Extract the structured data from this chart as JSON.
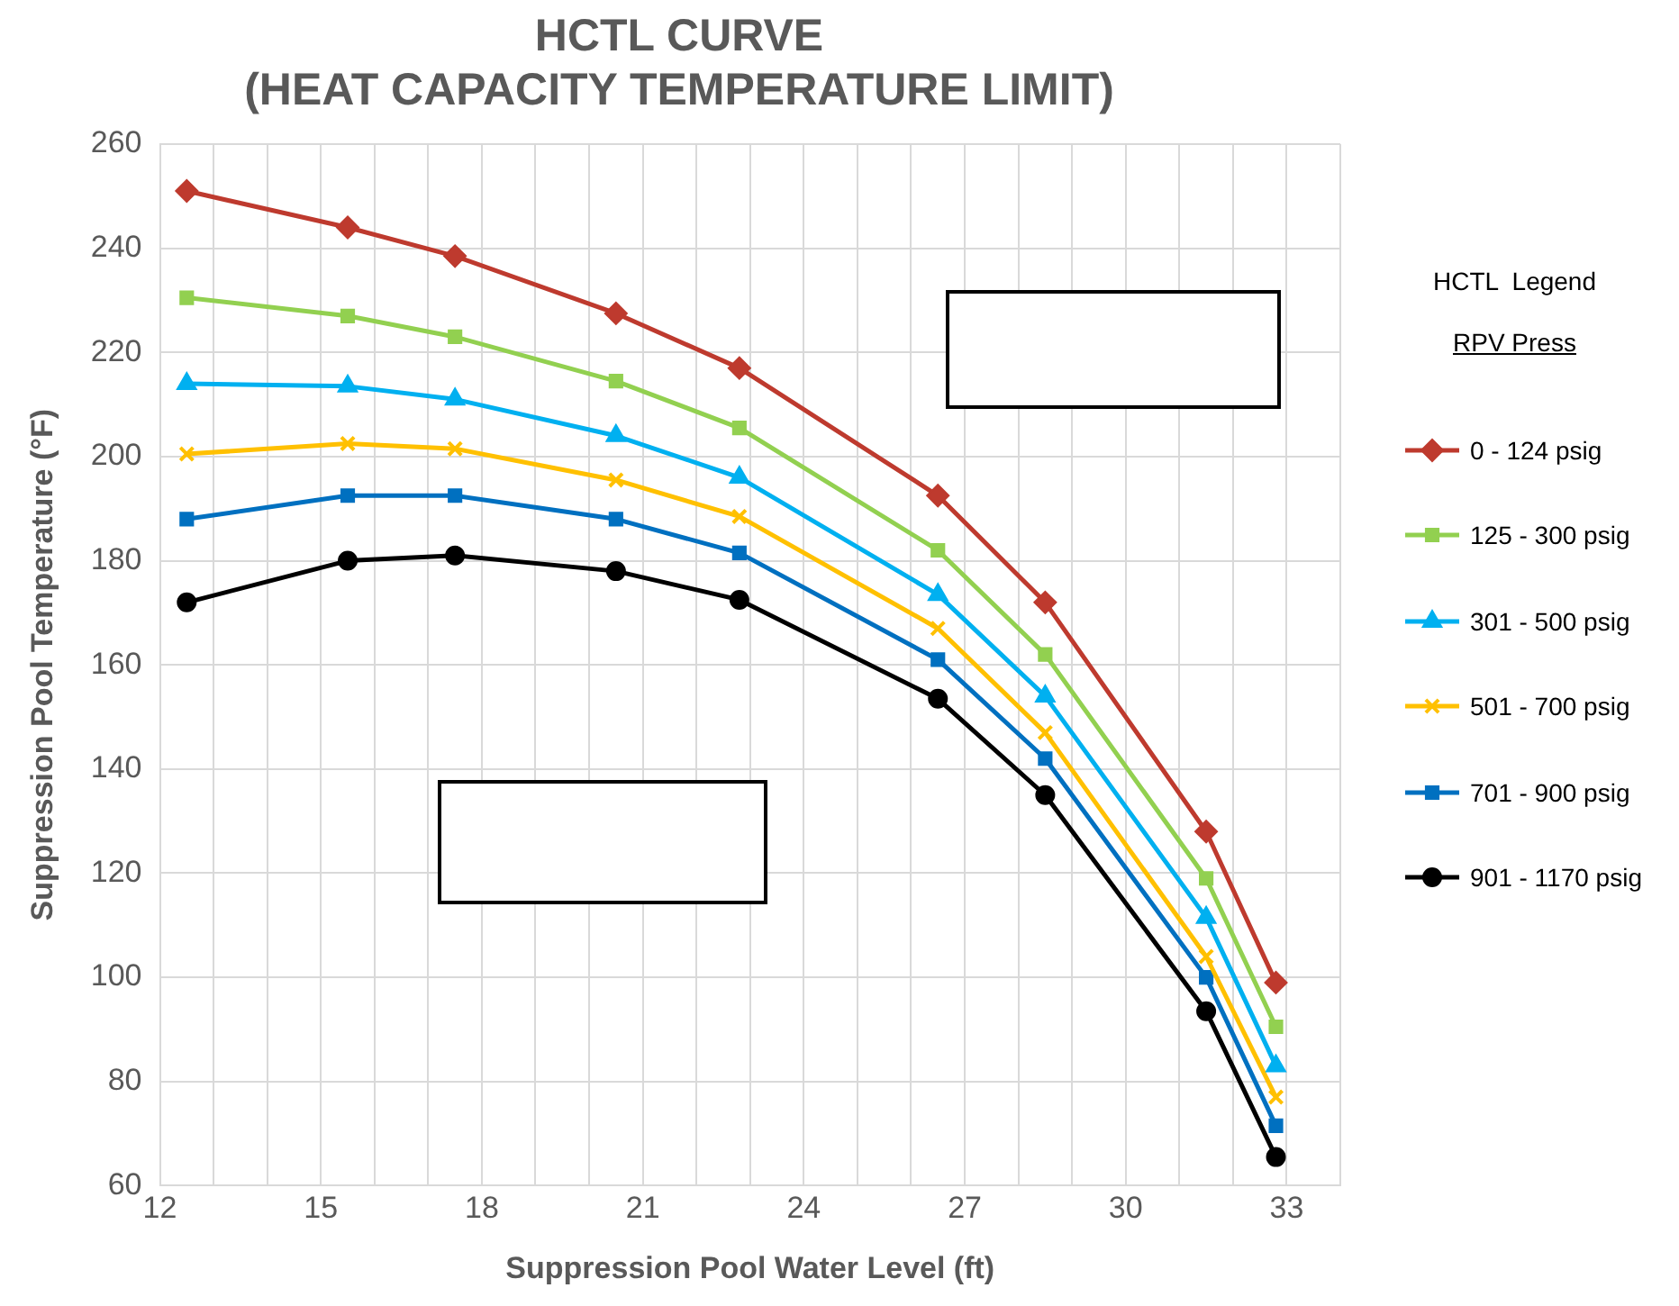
{
  "chart_data": {
    "type": "line",
    "title": "HCTL CURVE\n(HEAT CAPACITY TEMPERATURE LIMIT)",
    "xlabel": "Suppression Pool Water Level (ft)",
    "ylabel": "Suppression Pool Temperature (°F)",
    "legend_title": "HCTL  Legend\nRPV Press",
    "legend": "right",
    "grid": true,
    "line_style": "solid",
    "x": [
      12.5,
      15.5,
      17.5,
      20.5,
      22.8,
      26.5,
      28.5,
      31.5,
      32.8
    ],
    "xlim": [
      12,
      34
    ],
    "xticks": [
      12,
      {
        "value": 13,
        "label": null
      },
      {
        "value": 14,
        "label": null
      },
      15,
      {
        "value": 16,
        "label": null
      },
      {
        "value": 17,
        "label": null
      },
      18,
      {
        "value": 19,
        "label": null
      },
      {
        "value": 20,
        "label": null
      },
      21,
      {
        "value": 22,
        "label": null
      },
      {
        "value": 23,
        "label": null
      },
      24,
      {
        "value": 25,
        "label": null
      },
      {
        "value": 26,
        "label": null
      },
      27,
      {
        "value": 28,
        "label": null
      },
      {
        "value": 29,
        "label": null
      },
      30,
      {
        "value": 31,
        "label": null
      },
      {
        "value": 32,
        "label": null
      },
      33,
      {
        "value": 34,
        "label": null
      }
    ],
    "ylim": [
      60,
      260
    ],
    "yticks": [
      60,
      80,
      100,
      120,
      140,
      160,
      180,
      200,
      220,
      240,
      260
    ],
    "series": [
      {
        "name": "0 - 124 psig",
        "color": "#be3a2e",
        "marker": "diamond",
        "values": [
          251,
          244,
          238.5,
          227.5,
          217,
          192.5,
          172,
          128,
          99
        ]
      },
      {
        "name": "125 - 300 psig",
        "color": "#92d050",
        "marker": "square",
        "values": [
          230.5,
          227,
          223,
          214.5,
          205.5,
          182,
          162,
          119,
          90.5
        ]
      },
      {
        "name": "301 - 500 psig",
        "color": "#00b0f0",
        "marker": "triangle",
        "values": [
          214,
          213.5,
          211,
          204,
          196,
          173.5,
          154,
          111.5,
          83
        ]
      },
      {
        "name": "501 - 700 psig",
        "color": "#ffc000",
        "marker": "cross",
        "values": [
          200.5,
          202.5,
          201.5,
          195.5,
          188.5,
          167,
          147,
          104,
          77
        ]
      },
      {
        "name": "701 - 900 psig",
        "color": "#0070c0",
        "marker": "square",
        "values": [
          188,
          192.5,
          192.5,
          188,
          181.5,
          161,
          142,
          100,
          71.5
        ]
      },
      {
        "name": "901 - 1170 psig",
        "color": "#000000",
        "marker": "circle",
        "values": [
          172,
          180,
          181,
          178,
          172.5,
          153.5,
          135,
          93.5,
          65.5
        ]
      }
    ]
  }
}
